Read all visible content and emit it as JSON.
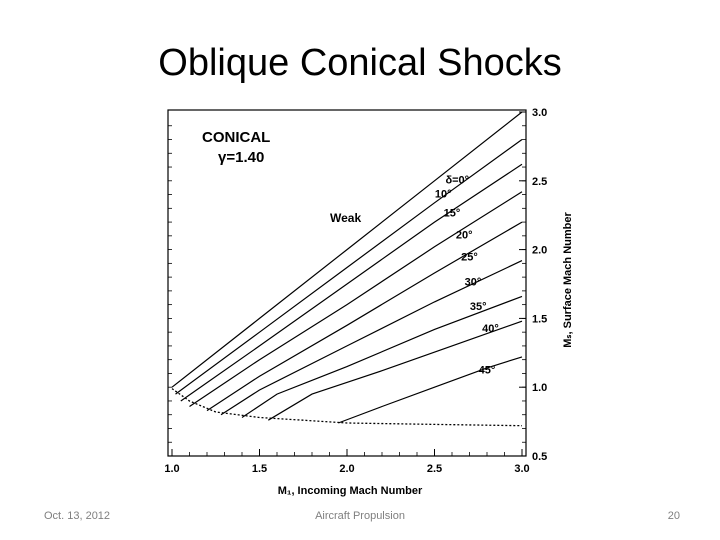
{
  "slide": {
    "title": "Oblique Conical Shocks",
    "footer_date": "Oct. 13, 2012",
    "footer_center": "Aircraft Propulsion",
    "page_number": "20"
  },
  "chart_data": {
    "type": "line",
    "title": "CONICAL",
    "subtitle": "γ=1.40",
    "xlabel": "M₁, Incoming Mach Number",
    "ylabel": "Mₛ, Surface Mach Number",
    "xlim": [
      1.0,
      3.0
    ],
    "ylim": [
      0.5,
      3.0
    ],
    "x_ticks": [
      "1.0",
      "1.5",
      "2.0",
      "2.5",
      "3.0"
    ],
    "y_ticks": [
      "0.5",
      "1.0",
      "1.5",
      "2.0",
      "2.5",
      "3.0"
    ],
    "region_label": "Weak",
    "boundary_label": "",
    "series": [
      {
        "name": "δ=0°",
        "x": [
          1.0,
          1.5,
          2.0,
          2.5,
          3.0
        ],
        "y": [
          1.0,
          1.5,
          2.0,
          2.5,
          3.0
        ]
      },
      {
        "name": "10°",
        "x": [
          1.02,
          1.5,
          2.0,
          2.5,
          3.0
        ],
        "y": [
          0.95,
          1.4,
          1.87,
          2.34,
          2.8
        ]
      },
      {
        "name": "15°",
        "x": [
          1.05,
          1.5,
          2.0,
          2.5,
          3.0
        ],
        "y": [
          0.9,
          1.3,
          1.75,
          2.2,
          2.62
        ]
      },
      {
        "name": "20°",
        "x": [
          1.1,
          1.5,
          2.0,
          2.5,
          3.0
        ],
        "y": [
          0.86,
          1.2,
          1.6,
          2.02,
          2.42
        ]
      },
      {
        "name": "25°",
        "x": [
          1.2,
          1.5,
          2.0,
          2.5,
          3.0
        ],
        "y": [
          0.83,
          1.08,
          1.45,
          1.83,
          2.2
        ]
      },
      {
        "name": "30°",
        "x": [
          1.28,
          1.5,
          2.0,
          2.5,
          3.0
        ],
        "y": [
          0.8,
          0.98,
          1.3,
          1.62,
          1.92
        ]
      },
      {
        "name": "35°",
        "x": [
          1.4,
          1.6,
          2.0,
          2.5,
          3.0
        ],
        "y": [
          0.78,
          0.95,
          1.15,
          1.42,
          1.66
        ]
      },
      {
        "name": "40°",
        "x": [
          1.55,
          1.8,
          2.2,
          2.6,
          3.0
        ],
        "y": [
          0.76,
          0.95,
          1.12,
          1.3,
          1.48
        ]
      },
      {
        "name": "45°",
        "x": [
          1.95,
          2.2,
          2.5,
          2.8,
          3.0
        ],
        "y": [
          0.74,
          0.86,
          1.0,
          1.14,
          1.22
        ]
      }
    ],
    "detachment_boundary": {
      "x": [
        1.0,
        1.1,
        1.25,
        1.5,
        1.75,
        2.0,
        2.5,
        3.0
      ],
      "y": [
        0.99,
        0.9,
        0.82,
        0.78,
        0.76,
        0.74,
        0.73,
        0.72
      ]
    },
    "grid": false,
    "legend": "inline labels"
  }
}
